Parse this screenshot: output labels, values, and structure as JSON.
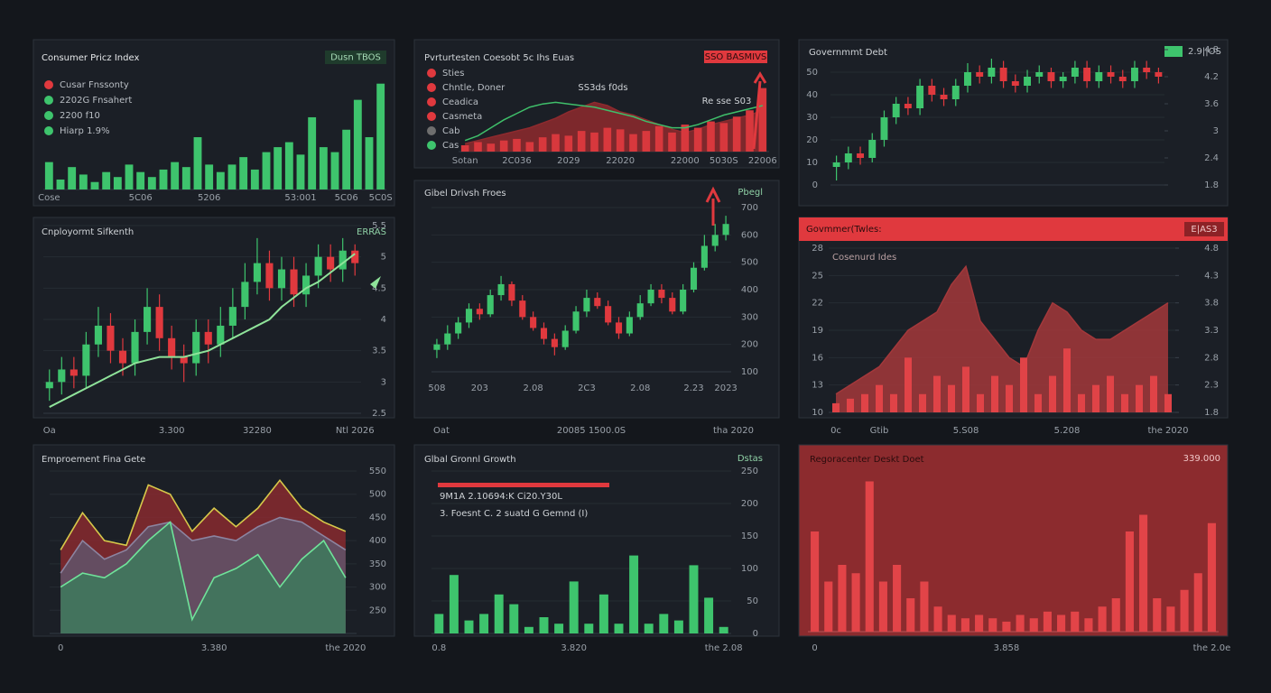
{
  "chart_data": [
    {
      "type": "bar",
      "title": "Consumer Pricz Index",
      "badge": "Dusn TBOS",
      "legend": [
        {
          "label": "Cusar Fnssonty",
          "color": "#e0393e"
        },
        {
          "label": "2202G Fnsahert",
          "color": "#3ec46d"
        },
        {
          "label": "2200 f10",
          "color": "#3ec46d"
        },
        {
          "label": "Hiarp 1.9%",
          "color": "#3ec46d"
        }
      ],
      "categories": [
        "Cose",
        null,
        null,
        null,
        null,
        null,
        null,
        null,
        "5C06",
        null,
        null,
        null,
        null,
        null,
        "5206",
        null,
        null,
        null,
        null,
        null,
        null,
        null,
        "53:001",
        null,
        null,
        null,
        "5C06",
        null,
        null,
        "5C0S"
      ],
      "values": [
        22,
        8,
        18,
        12,
        6,
        14,
        10,
        20,
        14,
        10,
        16,
        22,
        18,
        42,
        20,
        14,
        20,
        26,
        16,
        30,
        34,
        38,
        28,
        58,
        34,
        30,
        48,
        72,
        42,
        85
      ],
      "color": "#3ec46d",
      "ylim": [
        0,
        100
      ]
    },
    {
      "type": "combo",
      "title": "Pvrturtesten Coesobt 5c Ihs Euas",
      "badge": "SSO BASMIVS",
      "legend": [
        {
          "label": "Sties",
          "color": "#e0393e"
        },
        {
          "label": "Chntle, Doner",
          "color": "#e0393e"
        },
        {
          "label": "Ceadica",
          "color": "#e0393e"
        },
        {
          "label": "Casmeta",
          "color": "#e0393e"
        },
        {
          "label": "Cab",
          "color": "#6e6e6e"
        },
        {
          "label": "Cas",
          "color": "#3ec46d"
        }
      ],
      "annotations": [
        "SS3ds f0ds",
        "Re sse S03"
      ],
      "categories": [
        "Sotan",
        null,
        null,
        null,
        "2C036",
        null,
        null,
        null,
        "2029",
        null,
        null,
        null,
        "22020",
        null,
        null,
        null,
        null,
        "22000",
        null,
        null,
        "5030S",
        null,
        null,
        "22006"
      ],
      "series": [
        {
          "kind": "area",
          "color": "#8e2a2e",
          "values": [
            10,
            14,
            18,
            22,
            26,
            30,
            36,
            42,
            50,
            56,
            62,
            58,
            50,
            46,
            40,
            34,
            28,
            24,
            28,
            34,
            38,
            42,
            46,
            52
          ]
        },
        {
          "kind": "bar",
          "color": "#d8383d",
          "values": [
            8,
            12,
            10,
            14,
            16,
            12,
            18,
            22,
            20,
            26,
            24,
            30,
            28,
            22,
            26,
            32,
            24,
            34,
            30,
            38,
            36,
            44,
            52,
            80
          ]
        },
        {
          "kind": "line",
          "color": "#3fbf6a",
          "values": [
            14,
            20,
            30,
            40,
            48,
            56,
            60,
            62,
            60,
            58,
            56,
            52,
            48,
            44,
            38,
            34,
            30,
            30,
            34,
            40,
            46,
            50,
            54,
            58
          ]
        }
      ],
      "ylim": [
        0,
        100
      ]
    },
    {
      "type": "candlestick",
      "title": "Governmmt Debt",
      "legend": [
        {
          "label": "2.9||OS",
          "color": "#3ec46d"
        }
      ],
      "open": [
        8,
        10,
        14,
        12,
        20,
        30,
        36,
        34,
        44,
        40,
        38,
        44,
        50,
        48,
        52,
        46,
        44,
        48,
        50,
        46,
        48,
        52,
        46,
        50,
        48,
        46,
        52,
        50
      ],
      "high": [
        13,
        17,
        17,
        23,
        33,
        39,
        39,
        47,
        47,
        43,
        47,
        54,
        53,
        56,
        55,
        49,
        51,
        53,
        52,
        50,
        55,
        55,
        53,
        53,
        51,
        55,
        55,
        52
      ],
      "low": [
        2,
        7,
        9,
        10,
        17,
        27,
        31,
        31,
        37,
        35,
        35,
        41,
        45,
        45,
        43,
        41,
        41,
        45,
        43,
        43,
        45,
        43,
        43,
        45,
        43,
        43,
        47,
        45
      ],
      "close": [
        10,
        14,
        12,
        20,
        30,
        36,
        34,
        44,
        40,
        38,
        44,
        50,
        48,
        52,
        46,
        44,
        48,
        50,
        46,
        48,
        52,
        46,
        50,
        48,
        46,
        52,
        50,
        48
      ],
      "up_color": "#3ec46d",
      "down_color": "#e0393e",
      "ylim": [
        0,
        60
      ],
      "yticks": [
        0,
        10,
        20,
        30,
        40,
        50
      ],
      "y2lim": [
        1.8,
        4.8
      ],
      "y2ticks": [
        1.8,
        2.4,
        3,
        3.6,
        4.2,
        4.8
      ],
      "grid": true
    },
    {
      "type": "candlestick",
      "title": "Cnployormt Sifkenth",
      "badge": "ERRAS",
      "categories": [
        "Oa",
        null,
        null,
        null,
        null,
        null,
        null,
        null,
        null,
        null,
        "3.300",
        null,
        null,
        null,
        null,
        null,
        null,
        "32280",
        null,
        null,
        null,
        null,
        null,
        null,
        null,
        "Ntl 2026"
      ],
      "open": [
        2.9,
        3.0,
        3.2,
        3.1,
        3.6,
        3.9,
        3.5,
        3.3,
        3.8,
        4.2,
        3.7,
        3.4,
        3.3,
        3.8,
        3.6,
        3.9,
        4.2,
        4.6,
        4.9,
        4.5,
        4.8,
        4.4,
        4.7,
        5.0,
        4.8,
        5.1
      ],
      "high": [
        3.2,
        3.4,
        3.4,
        3.8,
        4.2,
        4.1,
        3.7,
        4.0,
        4.5,
        4.4,
        3.9,
        3.6,
        4.0,
        4.0,
        4.2,
        4.5,
        4.9,
        5.3,
        5.1,
        5.0,
        5.0,
        4.9,
        5.2,
        5.2,
        5.3,
        5.2
      ],
      "low": [
        2.7,
        2.8,
        2.9,
        2.9,
        3.4,
        3.3,
        3.1,
        3.1,
        3.6,
        3.5,
        3.2,
        3.0,
        3.1,
        3.3,
        3.4,
        3.7,
        4.0,
        4.4,
        4.3,
        4.3,
        4.2,
        4.2,
        4.5,
        4.6,
        4.6,
        4.7
      ],
      "close": [
        3.0,
        3.2,
        3.1,
        3.6,
        3.9,
        3.5,
        3.3,
        3.8,
        4.2,
        3.7,
        3.4,
        3.3,
        3.8,
        3.6,
        3.9,
        4.2,
        4.6,
        4.9,
        4.5,
        4.8,
        4.4,
        4.7,
        5.0,
        4.8,
        5.1,
        4.9
      ],
      "trend": {
        "color": "#8fe39a",
        "values": [
          2.6,
          2.7,
          2.8,
          2.9,
          3.0,
          3.1,
          3.2,
          3.3,
          3.35,
          3.4,
          3.4,
          3.4,
          3.45,
          3.5,
          3.6,
          3.7,
          3.8,
          3.9,
          4.0,
          4.2,
          4.35,
          4.5,
          4.6,
          4.75,
          4.9,
          5.05
        ]
      },
      "up_color": "#3ec46d",
      "down_color": "#e0393e",
      "ylim": [
        2.5,
        5.5
      ],
      "yticks": [
        2.5,
        3,
        3.5,
        4,
        4.5,
        5,
        5.5
      ],
      "grid": true
    },
    {
      "type": "candlestick",
      "title": "Gibel Drivsh Froes",
      "badge": "Pbegl",
      "categories": [
        "508",
        null,
        null,
        null,
        "203",
        null,
        null,
        null,
        null,
        "2.08",
        null,
        null,
        null,
        null,
        "2C3",
        null,
        null,
        null,
        null,
        "2.08",
        null,
        null,
        null,
        null,
        "2.23",
        null,
        null,
        "2023"
      ],
      "footer": [
        "Oat",
        "20085 1500.0S",
        "tha 2020"
      ],
      "open": [
        180,
        200,
        240,
        280,
        330,
        310,
        380,
        420,
        360,
        300,
        260,
        220,
        190,
        250,
        320,
        370,
        340,
        280,
        240,
        300,
        350,
        400,
        370,
        320,
        400,
        480,
        560,
        600
      ],
      "high": [
        220,
        270,
        300,
        350,
        350,
        400,
        450,
        430,
        380,
        320,
        280,
        240,
        270,
        340,
        400,
        390,
        360,
        300,
        320,
        380,
        420,
        420,
        390,
        420,
        500,
        600,
        640,
        670
      ],
      "low": [
        150,
        180,
        220,
        260,
        290,
        300,
        360,
        340,
        290,
        250,
        200,
        160,
        180,
        240,
        300,
        330,
        270,
        220,
        230,
        290,
        340,
        350,
        310,
        310,
        390,
        470,
        540,
        580
      ],
      "close": [
        200,
        240,
        280,
        330,
        310,
        380,
        420,
        360,
        300,
        260,
        220,
        190,
        250,
        320,
        370,
        340,
        280,
        240,
        300,
        350,
        400,
        370,
        320,
        400,
        480,
        560,
        600,
        640
      ],
      "up_color": "#3ec46d",
      "down_color": "#e0393e",
      "ylim": [
        100,
        700
      ],
      "yticks": [
        100,
        200,
        300,
        400,
        500,
        600,
        700
      ],
      "grid": true
    },
    {
      "type": "combo",
      "title": "Govmmer(Twles:",
      "badge": "E|AS3",
      "header_color": "#e0393e",
      "annotations": [
        "Cosenurd Ides"
      ],
      "categories": [
        "0c",
        null,
        null,
        "Gtib",
        null,
        null,
        null,
        null,
        null,
        "5.S08",
        null,
        null,
        null,
        null,
        null,
        null,
        "5.208",
        null,
        null,
        null,
        null,
        null,
        null,
        "the 2020"
      ],
      "series": [
        {
          "kind": "area",
          "color": "#a3383b",
          "values": [
            12,
            13,
            14,
            15,
            17,
            19,
            20,
            21,
            24,
            26,
            20,
            18,
            16,
            15,
            19,
            22,
            21,
            19,
            18,
            18,
            19,
            20,
            21,
            22
          ]
        },
        {
          "kind": "bar",
          "color": "#e04347",
          "values": [
            11,
            11.5,
            12,
            13,
            12,
            16,
            12,
            14,
            13,
            15,
            12,
            14,
            13,
            16,
            12,
            14,
            17,
            12,
            13,
            14,
            12,
            13,
            14,
            12
          ]
        }
      ],
      "ylim": [
        10,
        28
      ],
      "yticks": [
        10,
        13,
        16,
        19,
        22,
        25,
        28
      ],
      "y2lim": [
        1.8,
        4.8
      ],
      "y2ticks": [
        1.8,
        2.3,
        2.8,
        3.3,
        3.8,
        4.3,
        4.8
      ],
      "grid": true
    },
    {
      "type": "area",
      "title": "Emproement Fina Gete",
      "categories": [
        "0",
        null,
        null,
        null,
        null,
        null,
        null,
        "3.380",
        null,
        null,
        null,
        null,
        null,
        "the 2020"
      ],
      "series": [
        {
          "color": "#8e2a30",
          "line_color": "#d6c84a",
          "values": [
            380,
            460,
            400,
            390,
            520,
            500,
            420,
            470,
            430,
            470,
            530,
            470,
            440,
            420
          ]
        },
        {
          "color": "#5f566e",
          "line_color": "#8c84a0",
          "values": [
            330,
            400,
            360,
            380,
            430,
            440,
            400,
            410,
            400,
            430,
            450,
            440,
            410,
            380
          ]
        },
        {
          "color": "#3b7d5c",
          "line_color": "#6fe39a",
          "values": [
            300,
            330,
            320,
            350,
            400,
            440,
            230,
            320,
            340,
            370,
            300,
            360,
            400,
            320
          ]
        }
      ],
      "ylim": [
        200,
        550
      ],
      "yticks": [
        250,
        300,
        350,
        400,
        450,
        500,
        550
      ],
      "grid": true
    },
    {
      "type": "bar",
      "title": "Glbal Gronnl Growth",
      "badge": "Dstas",
      "annotations": [
        "9M1A 2.10694:K Ci20.Y30L",
        "3. Foesnt C. 2 suatd G Gemnd (I)"
      ],
      "categories": [
        "0.8",
        null,
        null,
        null,
        null,
        null,
        null,
        null,
        null,
        "3.820",
        null,
        null,
        null,
        null,
        null,
        null,
        null,
        null,
        null,
        "the 2.08"
      ],
      "values": [
        30,
        90,
        20,
        30,
        60,
        45,
        10,
        25,
        15,
        80,
        15,
        60,
        15,
        120,
        15,
        30,
        20,
        105,
        55,
        10
      ],
      "color": "#3ec46d",
      "ylim": [
        0,
        250
      ],
      "yticks": [
        0,
        50,
        100,
        150,
        200,
        250
      ],
      "grid": true
    },
    {
      "type": "bar",
      "title": "Regoracenter Deskt Doet",
      "badge": "339.000",
      "background": "#8c2b2e",
      "categories": [
        "0",
        null,
        null,
        null,
        null,
        null,
        null,
        null,
        null,
        null,
        null,
        null,
        null,
        null,
        "3.858",
        null,
        null,
        null,
        null,
        null,
        null,
        null,
        null,
        null,
        null,
        null,
        null,
        null,
        null,
        "the 2.0e"
      ],
      "values": [
        60,
        30,
        40,
        35,
        90,
        30,
        40,
        20,
        30,
        15,
        10,
        8,
        10,
        8,
        6,
        10,
        8,
        12,
        10,
        12,
        8,
        15,
        20,
        60,
        70,
        20,
        15,
        25,
        35,
        65
      ],
      "color": "#e24448",
      "ylim": [
        0,
        100
      ],
      "grid": true
    }
  ]
}
